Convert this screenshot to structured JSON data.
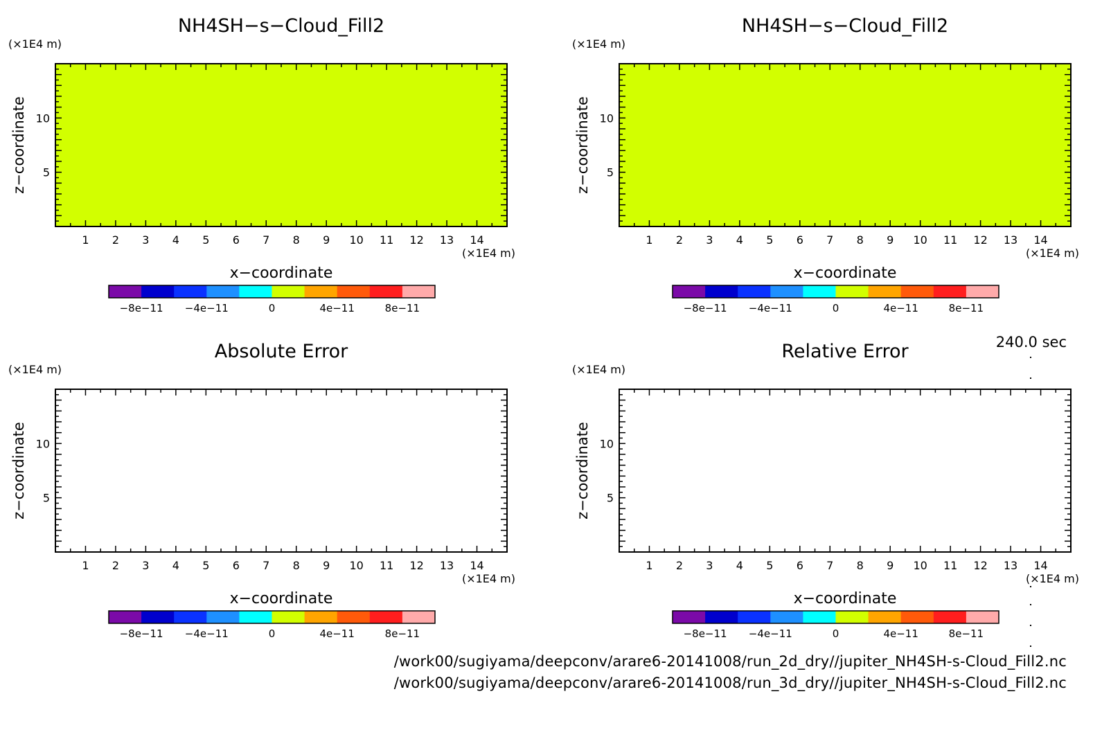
{
  "colormap": {
    "colors": [
      "#7b0aa8",
      "#0000cd",
      "#0a32ff",
      "#1e90ff",
      "#00ffff",
      "#d2ff00",
      "#ffa500",
      "#ff5a0a",
      "#ff1e1e",
      "#ffaaaa"
    ],
    "ticks": [
      -8e-11,
      -4e-11,
      0,
      4e-11,
      8e-11
    ],
    "tick_labels": [
      "−8e−11",
      "−4e−11",
      "0",
      "4e−11",
      "8e−11"
    ],
    "range": [
      -1e-10,
      1e-10
    ]
  },
  "time_label": "240.0 sec",
  "file_paths": [
    "/work00/sugiyama/deepconv/arare6-20141008/run_2d_dry//jupiter_NH4SH-s-Cloud_Fill2.nc",
    "/work00/sugiyama/deepconv/arare6-20141008/run_3d_dry//jupiter_NH4SH-s-Cloud_Fill2.nc"
  ],
  "chart_data": [
    {
      "type": "heatmap",
      "title": "NH4SH−s−Cloud_Fill2",
      "xlabel": "x−coordinate",
      "ylabel": "z−coordinate",
      "x_unit": "(×1E4 m)",
      "y_unit": "(×1E4 m)",
      "xlim": [
        0,
        15
      ],
      "ylim": [
        0,
        15
      ],
      "x_ticks": [
        1,
        2,
        3,
        4,
        5,
        6,
        7,
        8,
        9,
        10,
        11,
        12,
        13,
        14
      ],
      "y_ticks": [
        5,
        10
      ],
      "field_value": 0,
      "fill_color": "#d2ff00",
      "filled": true
    },
    {
      "type": "heatmap",
      "title": "NH4SH−s−Cloud_Fill2",
      "xlabel": "x−coordinate",
      "ylabel": "z−coordinate",
      "x_unit": "(×1E4 m)",
      "y_unit": "(×1E4 m)",
      "xlim": [
        0,
        15
      ],
      "ylim": [
        0,
        15
      ],
      "x_ticks": [
        1,
        2,
        3,
        4,
        5,
        6,
        7,
        8,
        9,
        10,
        11,
        12,
        13,
        14
      ],
      "y_ticks": [
        5,
        10
      ],
      "field_value": 0,
      "fill_color": "#d2ff00",
      "filled": true
    },
    {
      "type": "heatmap",
      "title": "Absolute Error",
      "xlabel": "x−coordinate",
      "ylabel": "z−coordinate",
      "x_unit": "(×1E4 m)",
      "y_unit": "(×1E4 m)",
      "xlim": [
        0,
        15
      ],
      "ylim": [
        0,
        15
      ],
      "x_ticks": [
        1,
        2,
        3,
        4,
        5,
        6,
        7,
        8,
        9,
        10,
        11,
        12,
        13,
        14
      ],
      "y_ticks": [
        5,
        10
      ],
      "fill_color": "#ffffff",
      "filled": false
    },
    {
      "type": "heatmap",
      "title": "Relative Error",
      "xlabel": "x−coordinate",
      "ylabel": "z−coordinate",
      "x_unit": "(×1E4 m)",
      "y_unit": "(×1E4 m)",
      "xlim": [
        0,
        15
      ],
      "ylim": [
        0,
        15
      ],
      "x_ticks": [
        1,
        2,
        3,
        4,
        5,
        6,
        7,
        8,
        9,
        10,
        11,
        12,
        13,
        14
      ],
      "y_ticks": [
        5,
        10
      ],
      "fill_color": "#ffffff",
      "filled": false
    }
  ]
}
